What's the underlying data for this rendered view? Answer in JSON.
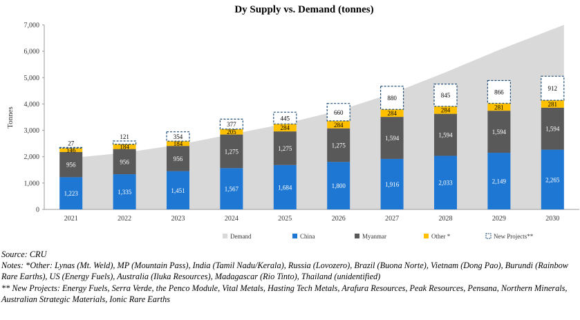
{
  "chart_data": {
    "type": "bar",
    "title": "Dy Supply vs. Demand (tonnes)",
    "ylabel": "Tonnes",
    "ylim": [
      0,
      7000
    ],
    "yticks": [
      "0",
      "1,000",
      "2,000",
      "3,000",
      "4,000",
      "5,000",
      "6,000",
      "7,000"
    ],
    "categories": [
      "2021",
      "2022",
      "2023",
      "2024",
      "2025",
      "2026",
      "2027",
      "2028",
      "2029",
      "2030"
    ],
    "series": [
      {
        "name": "China",
        "color": "#1f77d4",
        "values": [
          1223,
          1335,
          1451,
          1567,
          1684,
          1800,
          1916,
          2033,
          2149,
          2265
        ],
        "labels": [
          "1,223",
          "1,335",
          "1,451",
          "1,567",
          "1,684",
          "1,800",
          "1,916",
          "2,033",
          "2,149",
          "2,265"
        ]
      },
      {
        "name": "Myanmar",
        "color": "#595959",
        "values": [
          956,
          956,
          956,
          1275,
          1275,
          1275,
          1594,
          1594,
          1594,
          1594
        ],
        "labels": [
          "956",
          "956",
          "956",
          "1,275",
          "1,275",
          "1,275",
          "1,594",
          "1,594",
          "1,594",
          "1,594"
        ]
      },
      {
        "name": "Other *",
        "color": "#ffc000",
        "values": [
          146,
          184,
          184,
          205,
          284,
          284,
          284,
          284,
          281,
          281
        ],
        "labels": [
          "146",
          "184",
          "184",
          "205",
          "284",
          "284",
          "284",
          "284",
          "281",
          "281"
        ]
      },
      {
        "name": "New Projects**",
        "color": "#ffffff",
        "border": "#1f4e79",
        "values": [
          27,
          121,
          354,
          377,
          445,
          660,
          880,
          845,
          866,
          912
        ],
        "labels": [
          "27",
          "121",
          "354",
          "377",
          "445",
          "660",
          "880",
          "845",
          "866",
          "912"
        ]
      }
    ],
    "demand": {
      "name": "Demand",
      "color": "#d9d9d9",
      "values": [
        1950,
        2150,
        2450,
        2850,
        3250,
        3750,
        4400,
        5200,
        6050,
        7000
      ]
    },
    "legend": [
      "Demand",
      "China",
      "Myanmar",
      "Other *",
      "New Projects**"
    ],
    "grid": false,
    "legend_position": "bottom"
  },
  "notes": {
    "source": "Source: CRU",
    "other": "Notes: *Other: Lynas (Mt. Weld), MP (Mountain Pass), India (Tamil Nadu/Kerala), Russia (Lovozero), Brazil (Buona Norte), Vietnam (Dong Pao), Burundi (Rainbow Rare Earths), US (Energy Fuels), Australia (Iluka Resources), Madagascar (Rio Tinto), Thailand (unidentified)",
    "new_projects": "** New Projects: Energy Fuels, Serra Verde, the Penco Module, Vital Metals, Hasting Tech Metals, Arafura Resources, Peak Resources, Pensana, Northern Minerals, Australian Strategic Materials, Ionic Rare Earths"
  }
}
